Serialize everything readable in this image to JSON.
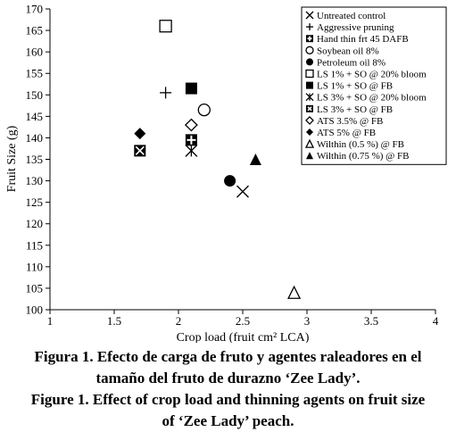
{
  "chart_data": {
    "type": "scatter",
    "xlabel": "Crop load (fruit cm² LCA)",
    "ylabel": "Fruit Size (g)",
    "xlim": [
      1,
      4
    ],
    "ylim": [
      100,
      170
    ],
    "x_ticks": [
      "1",
      "1.5",
      "2",
      "2.5",
      "3",
      "3.5",
      "4"
    ],
    "y_ticks": [
      "100",
      "105",
      "110",
      "115",
      "120",
      "125",
      "130",
      "135",
      "140",
      "145",
      "150",
      "155",
      "160",
      "165",
      "170"
    ],
    "legend_position": "top-right",
    "series": [
      {
        "name": "Untreated control",
        "marker": "x",
        "points": [
          {
            "x": 2.5,
            "y": 127.5
          }
        ]
      },
      {
        "name": "Aggressive pruning",
        "marker": "plus",
        "points": [
          {
            "x": 1.9,
            "y": 150.5
          }
        ]
      },
      {
        "name": "Hand thin frt 45 DAFB",
        "marker": "square-plus",
        "points": [
          {
            "x": 2.1,
            "y": 139.5
          }
        ]
      },
      {
        "name": "Soybean oil 8%",
        "marker": "circle-open",
        "points": [
          {
            "x": 2.2,
            "y": 146.5
          }
        ]
      },
      {
        "name": "Petroleum oil 8%",
        "marker": "circle-filled",
        "points": [
          {
            "x": 2.4,
            "y": 130
          }
        ]
      },
      {
        "name": "LS 1% + SO @ 20% bloom",
        "marker": "square-open",
        "points": [
          {
            "x": 1.9,
            "y": 166
          }
        ]
      },
      {
        "name": "LS 1% + SO @ FB",
        "marker": "square-filled",
        "points": [
          {
            "x": 2.1,
            "y": 151.5
          }
        ]
      },
      {
        "name": "LS 3% + SO @ 20% bloom",
        "marker": "asterisk",
        "points": [
          {
            "x": 2.1,
            "y": 137
          }
        ]
      },
      {
        "name": "LS 3% + SO @ FB",
        "marker": "square-x",
        "points": [
          {
            "x": 1.7,
            "y": 137
          }
        ]
      },
      {
        "name": "ATS 3.5% @ FB",
        "marker": "diamond-open",
        "points": [
          {
            "x": 2.1,
            "y": 143
          }
        ]
      },
      {
        "name": "ATS 5% @ FB",
        "marker": "diamond-filled",
        "points": [
          {
            "x": 1.7,
            "y": 141
          }
        ]
      },
      {
        "name": "Wilthin (0.5 %) @ FB",
        "marker": "triangle-open",
        "points": [
          {
            "x": 2.9,
            "y": 104
          }
        ]
      },
      {
        "name": "Wilthin (0.75 %) @ FB",
        "marker": "triangle-filled",
        "points": [
          {
            "x": 2.6,
            "y": 135
          }
        ]
      }
    ]
  },
  "captions": {
    "es_line1": "Figura 1. Efecto de carga de fruto y agentes raleadores en el",
    "es_line2": "tamaño del fruto de durazno ‘Zee Lady’.",
    "en_line1": "Figure 1. Effect of crop load and thinning agents on fruit size",
    "en_line2": "of ‘Zee Lady’ peach."
  }
}
